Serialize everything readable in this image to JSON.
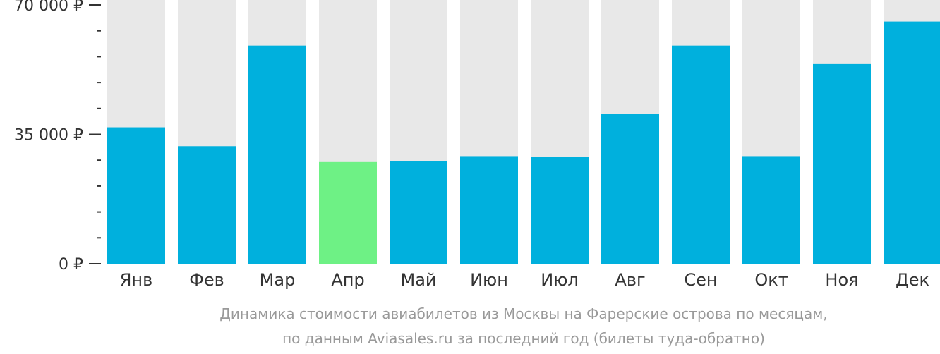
{
  "chart_data": {
    "type": "bar",
    "categories": [
      "Янв",
      "Фев",
      "Мар",
      "Апр",
      "Май",
      "Июн",
      "Июл",
      "Авг",
      "Сен",
      "Окт",
      "Ноя",
      "Дек"
    ],
    "values": [
      36900,
      31800,
      59000,
      27500,
      27700,
      29100,
      28900,
      40500,
      59000,
      29100,
      54000,
      65500
    ],
    "ylim": [
      0,
      70000
    ],
    "yticks": [
      0,
      35000,
      70000
    ],
    "ytick_labels": [
      "0 ₽",
      "35 000 ₽",
      "70 000 ₽"
    ],
    "minor_ticks_per_interval": 4,
    "highlight_index": 3,
    "colors": {
      "bar": "#00b0dd",
      "highlight": "#6ef185",
      "track": "#e8e8e8",
      "axis": "#333333",
      "caption": "#999999"
    },
    "caption": [
      "Динамика стоимости авиабилетов из Москвы на Фарерские острова по месяцам,",
      "по данным Aviasales.ru за последний год (билеты туда-обратно)"
    ],
    "grid": false,
    "legend": "none"
  }
}
